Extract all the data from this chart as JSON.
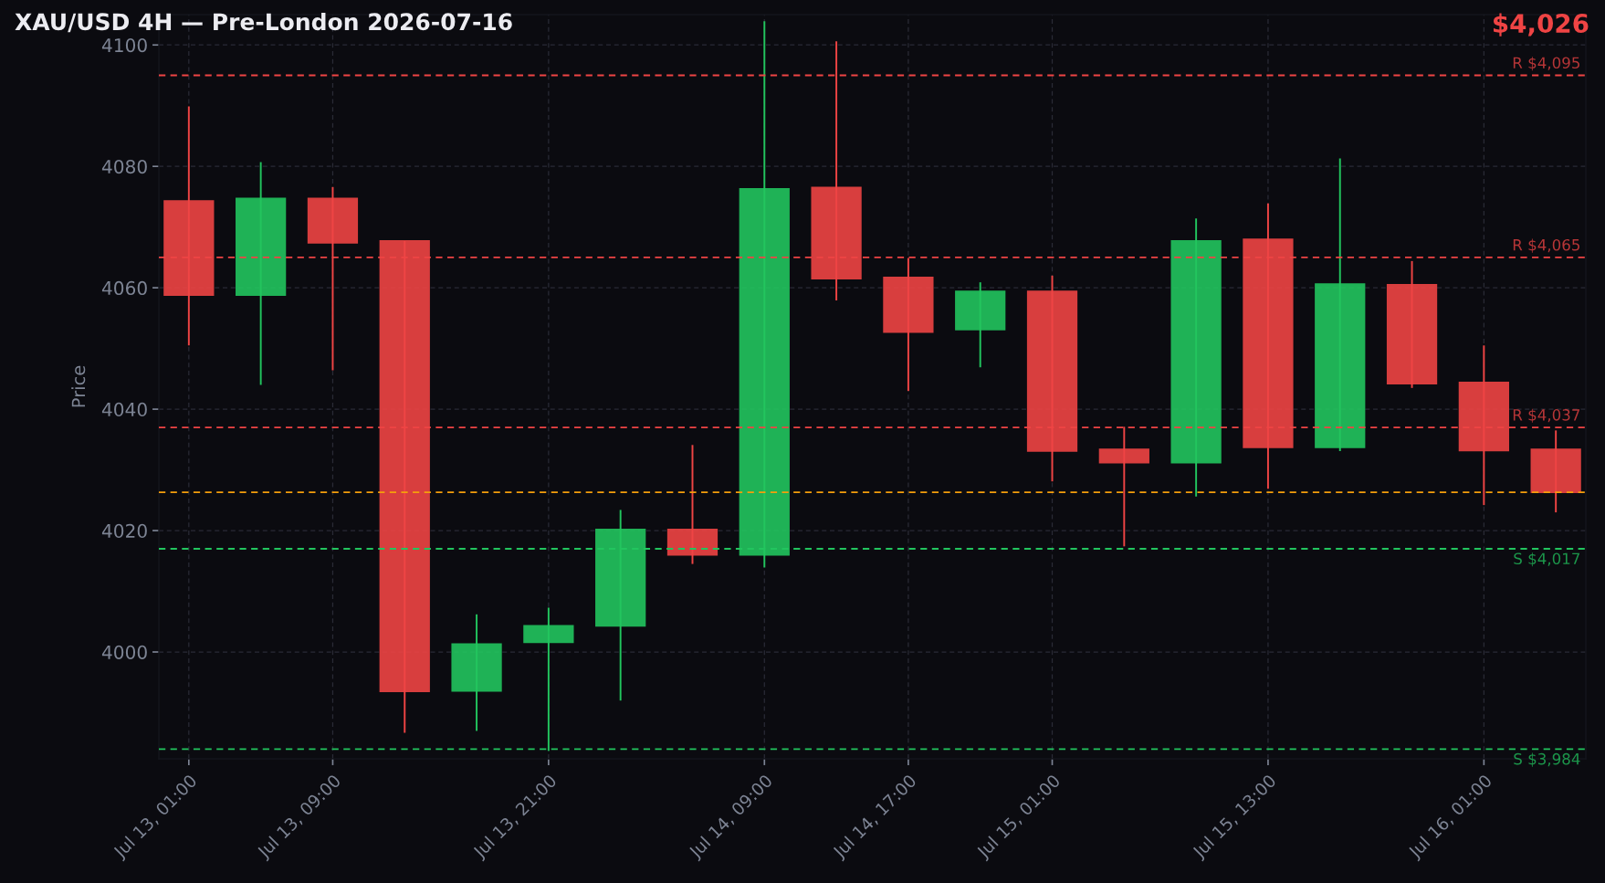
{
  "chart_data": {
    "type": "candlestick",
    "title": "XAU/USD 4H — Pre-London 2026-07-16",
    "ylabel": "Price",
    "annotations": [
      "$4,026"
    ],
    "x": [
      "2026-07-13T01:00",
      "2026-07-13T05:00",
      "2026-07-13T09:00",
      "2026-07-13T13:00",
      "2026-07-13T17:00",
      "2026-07-13T21:00",
      "2026-07-14T01:00",
      "2026-07-14T05:00",
      "2026-07-14T09:00",
      "2026-07-14T13:00",
      "2026-07-14T17:00",
      "2026-07-14T21:00",
      "2026-07-15T01:00",
      "2026-07-15T05:00",
      "2026-07-15T09:00",
      "2026-07-15T13:00",
      "2026-07-15T17:00",
      "2026-07-15T21:00",
      "2026-07-16T01:00",
      "2026-07-16T05:00"
    ],
    "ohlc": [
      [
        4074.3,
        4089.9,
        4050.5,
        4058.8
      ],
      [
        4058.8,
        4080.7,
        4044.0,
        4074.7
      ],
      [
        4074.7,
        4076.6,
        4046.4,
        4067.4
      ],
      [
        4067.7,
        4067.7,
        3986.7,
        3993.5
      ],
      [
        3993.6,
        4006.2,
        3987.0,
        4001.3
      ],
      [
        4001.6,
        4007.3,
        3983.7,
        4004.3
      ],
      [
        4004.3,
        4023.4,
        3992.0,
        4020.2
      ],
      [
        4020.2,
        4034.1,
        4014.5,
        4016.0
      ],
      [
        4016.0,
        4103.9,
        4013.9,
        4076.3
      ],
      [
        4076.5,
        4100.6,
        4057.9,
        4061.5
      ],
      [
        4061.7,
        4064.9,
        4043.0,
        4052.7
      ],
      [
        4053.1,
        4060.9,
        4046.9,
        4059.4
      ],
      [
        4059.4,
        4062.0,
        4028.1,
        4033.1
      ],
      [
        4033.4,
        4037.1,
        4017.4,
        4031.2
      ],
      [
        4031.2,
        4071.4,
        4025.6,
        4067.7
      ],
      [
        4068.0,
        4073.9,
        4026.9,
        4033.7
      ],
      [
        4033.7,
        4081.3,
        4033.1,
        4060.6
      ],
      [
        4060.5,
        4064.4,
        4043.5,
        4044.2
      ],
      [
        4044.4,
        4050.5,
        4024.2,
        4033.2
      ],
      [
        4033.4,
        4036.5,
        4023.0,
        4026.3
      ]
    ],
    "colors": [
      "#ef4444",
      "#22c55e",
      "#ef4444",
      "#ef4444",
      "#22c55e",
      "#22c55e",
      "#22c55e",
      "#ef4444",
      "#22c55e",
      "#ef4444",
      "#ef4444",
      "#22c55e",
      "#ef4444",
      "#ef4444",
      "#22c55e",
      "#ef4444",
      "#22c55e",
      "#ef4444",
      "#ef4444",
      "#ef4444"
    ],
    "xlim": [
      "2026-07-12T23:20",
      "2026-07-16T06:40"
    ],
    "xticks": [
      {
        "value": "2026-07-13T01:00",
        "label": "Jul 13, 01:00"
      },
      {
        "value": "2026-07-13T09:00",
        "label": "Jul 13, 09:00"
      },
      {
        "value": "2026-07-13T21:00",
        "label": "Jul 13, 21:00"
      },
      {
        "value": "2026-07-14T09:00",
        "label": "Jul 14, 09:00"
      },
      {
        "value": "2026-07-14T17:00",
        "label": "Jul 14, 17:00"
      },
      {
        "value": "2026-07-15T01:00",
        "label": "Jul 15, 01:00"
      },
      {
        "value": "2026-07-15T13:00",
        "label": "Jul 15, 13:00"
      },
      {
        "value": "2026-07-16T01:00",
        "label": "Jul 16, 01:00"
      }
    ],
    "ylim": [
      3982.4,
      4105.0
    ],
    "yticks": [
      4000,
      4020,
      4040,
      4060,
      4080,
      4100
    ],
    "ref_lines": [
      {
        "axis": "y",
        "value": 4095,
        "label": "R $4,095",
        "color": "#ef4444",
        "line_style": "dashed"
      },
      {
        "axis": "y",
        "value": 4065,
        "label": "R $4,065",
        "color": "#ef4444",
        "line_style": "dashed"
      },
      {
        "axis": "y",
        "value": 4037,
        "label": "R $4,037",
        "color": "#ef4444",
        "line_style": "dashed"
      },
      {
        "axis": "y",
        "value": 4026.3,
        "color": "#f59e0b",
        "line_style": "dashed"
      },
      {
        "axis": "y",
        "value": 4017,
        "label": "S $4,017",
        "color": "#22c55e",
        "line_style": "dashed"
      },
      {
        "axis": "y",
        "value": 3984,
        "label": "S $3,984",
        "color": "#22c55e",
        "line_style": "dashed"
      }
    ],
    "grid": true
  }
}
